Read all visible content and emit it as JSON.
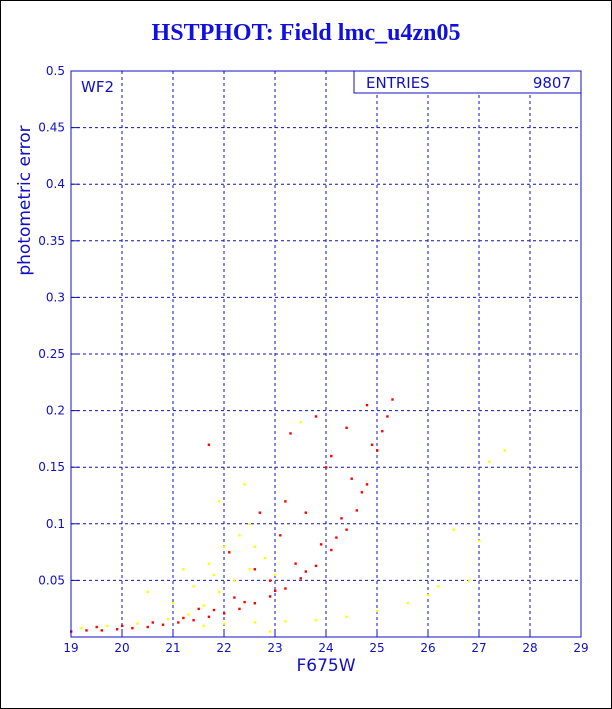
{
  "chart_data": {
    "type": "scatter",
    "title": "HSTPHOT: Field lmc_u4zn05",
    "xlabel": "F675W",
    "ylabel": "photometric error",
    "xlim": [
      19,
      29
    ],
    "ylim": [
      0,
      0.5
    ],
    "xticks": [
      19,
      20,
      21,
      22,
      23,
      24,
      25,
      26,
      27,
      28,
      29
    ],
    "yticks": [
      0.05,
      0.1,
      0.15,
      0.2,
      0.25,
      0.3,
      0.35,
      0.4,
      0.45,
      0.5
    ],
    "grid": true,
    "panel_label": "WF2",
    "stats_box": {
      "label": "ENTRIES",
      "value": "9807"
    },
    "series": [
      {
        "color": "#ff0000",
        "points": [
          [
            19.0,
            0.005
          ],
          [
            19.3,
            0.006
          ],
          [
            19.6,
            0.006
          ],
          [
            19.9,
            0.007
          ],
          [
            20.2,
            0.008
          ],
          [
            20.5,
            0.009
          ],
          [
            20.8,
            0.011
          ],
          [
            21.1,
            0.013
          ],
          [
            21.4,
            0.015
          ],
          [
            21.7,
            0.018
          ],
          [
            22.0,
            0.021
          ],
          [
            22.3,
            0.025
          ],
          [
            22.6,
            0.03
          ],
          [
            22.9,
            0.036
          ],
          [
            23.2,
            0.043
          ],
          [
            23.5,
            0.052
          ],
          [
            23.8,
            0.063
          ],
          [
            24.1,
            0.077
          ],
          [
            24.4,
            0.095
          ],
          [
            24.6,
            0.112
          ],
          [
            24.8,
            0.135
          ],
          [
            25.0,
            0.165
          ],
          [
            25.2,
            0.195
          ],
          [
            25.3,
            0.21
          ],
          [
            19.5,
            0.009
          ],
          [
            20.0,
            0.01
          ],
          [
            20.6,
            0.013
          ],
          [
            21.2,
            0.017
          ],
          [
            21.8,
            0.024
          ],
          [
            22.4,
            0.031
          ],
          [
            23.0,
            0.041
          ],
          [
            23.6,
            0.058
          ],
          [
            24.2,
            0.088
          ],
          [
            24.7,
            0.128
          ],
          [
            25.1,
            0.182
          ],
          [
            21.5,
            0.025
          ],
          [
            22.2,
            0.035
          ],
          [
            22.9,
            0.05
          ],
          [
            23.4,
            0.065
          ],
          [
            23.9,
            0.082
          ],
          [
            24.3,
            0.105
          ],
          [
            24.5,
            0.14
          ],
          [
            24.9,
            0.17
          ],
          [
            23.1,
            0.09
          ],
          [
            23.6,
            0.11
          ],
          [
            24.0,
            0.15
          ],
          [
            23.3,
            0.18
          ],
          [
            23.8,
            0.195
          ],
          [
            22.7,
            0.11
          ],
          [
            24.4,
            0.185
          ],
          [
            21.7,
            0.17
          ],
          [
            22.1,
            0.075
          ],
          [
            22.6,
            0.06
          ],
          [
            23.2,
            0.12
          ],
          [
            24.1,
            0.16
          ],
          [
            24.8,
            0.205
          ]
        ]
      },
      {
        "color": "#ffff00",
        "points": [
          [
            19.2,
            0.008
          ],
          [
            19.7,
            0.01
          ],
          [
            20.3,
            0.012
          ],
          [
            20.9,
            0.016
          ],
          [
            21.3,
            0.02
          ],
          [
            21.6,
            0.028
          ],
          [
            21.9,
            0.04
          ],
          [
            22.2,
            0.05
          ],
          [
            22.5,
            0.06
          ],
          [
            22.8,
            0.07
          ],
          [
            21.8,
            0.055
          ],
          [
            22.0,
            0.08
          ],
          [
            21.4,
            0.045
          ],
          [
            22.3,
            0.09
          ],
          [
            21.7,
            0.065
          ],
          [
            22.6,
            0.08
          ],
          [
            21.6,
            0.01
          ],
          [
            22.0,
            0.012
          ],
          [
            22.6,
            0.013
          ],
          [
            23.2,
            0.014
          ],
          [
            23.8,
            0.015
          ],
          [
            24.4,
            0.018
          ],
          [
            25.0,
            0.023
          ],
          [
            25.6,
            0.03
          ],
          [
            26.0,
            0.037
          ],
          [
            26.2,
            0.045
          ],
          [
            22.9,
            0.005
          ],
          [
            20.5,
            0.04
          ],
          [
            21.0,
            0.03
          ],
          [
            22.5,
            0.1
          ],
          [
            23.0,
            0.055
          ],
          [
            27.2,
            0.155
          ],
          [
            27.5,
            0.165
          ],
          [
            27.0,
            0.085
          ],
          [
            26.5,
            0.095
          ],
          [
            26.8,
            0.05
          ],
          [
            22.4,
            0.135
          ],
          [
            21.9,
            0.12
          ],
          [
            21.2,
            0.06
          ],
          [
            23.5,
            0.19
          ]
        ]
      }
    ]
  }
}
